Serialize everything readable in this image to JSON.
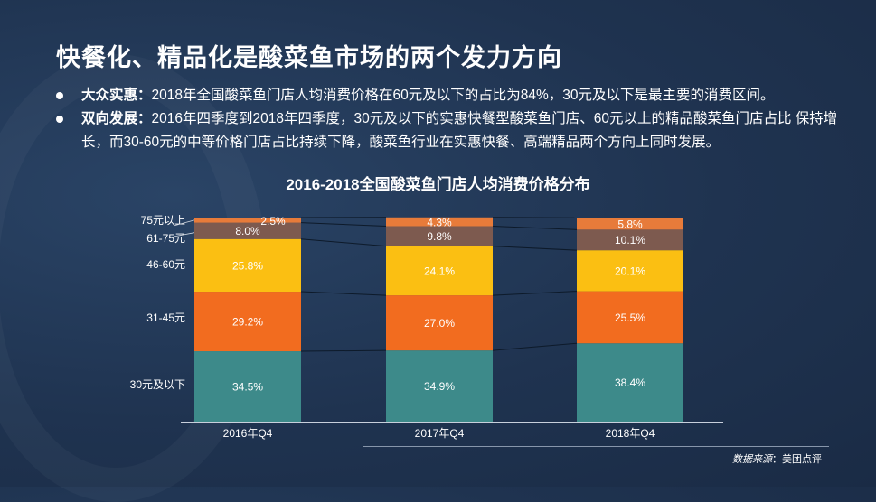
{
  "title": "快餐化、精品化是酸菜鱼市场的两个发力方向",
  "bullets": [
    {
      "label": "大众实惠：",
      "text": "2018年全国酸菜鱼门店人均消费价格在60元及以下的占比为84%，30元及以下是最主要的消费区间。"
    },
    {
      "label": "双向发展：",
      "text": "2016年四季度到2018年四季度，30元及以下的实惠快餐型酸菜鱼门店、60元以上的精品酸菜鱼门店占比 保持增长，而30-60元的中等价格门店占比持续下降，酸菜鱼行业在实惠快餐、高端精品两个方向上同时发展。"
    }
  ],
  "source": {
    "label": "数据来源",
    "text": "：美团点评"
  },
  "chart_data": {
    "type": "bar",
    "stacked": true,
    "title": "2016-2018全国酸菜鱼门店人均消费价格分布",
    "categories": [
      "2016年Q4",
      "2017年Q4",
      "2018年Q4"
    ],
    "ylim": [
      0,
      100
    ],
    "series": [
      {
        "name": "30元及以下",
        "color": "#3d8a8a",
        "values": [
          34.5,
          34.9,
          38.4
        ],
        "labels": [
          "34.5%",
          "34.9%",
          "38.4%"
        ]
      },
      {
        "name": "31-45元",
        "color": "#f26c1f",
        "values": [
          29.2,
          27.0,
          25.5
        ],
        "labels": [
          "29.2%",
          "27.0%",
          "25.5%"
        ]
      },
      {
        "name": "46-60元",
        "color": "#fbbf12",
        "values": [
          25.8,
          24.1,
          20.1
        ],
        "labels": [
          "25.8%",
          "24.1%",
          "20.1%"
        ]
      },
      {
        "name": "61-75元",
        "color": "#7d5a4f",
        "values": [
          8.0,
          9.8,
          10.1
        ],
        "labels": [
          "8.0%",
          "9.8%",
          "10.1%"
        ]
      },
      {
        "name": "75元以上",
        "color": "#e77b3a",
        "values": [
          2.5,
          4.3,
          5.8
        ],
        "labels": [
          "2.5%",
          "4.3%",
          "5.8%"
        ]
      }
    ]
  }
}
